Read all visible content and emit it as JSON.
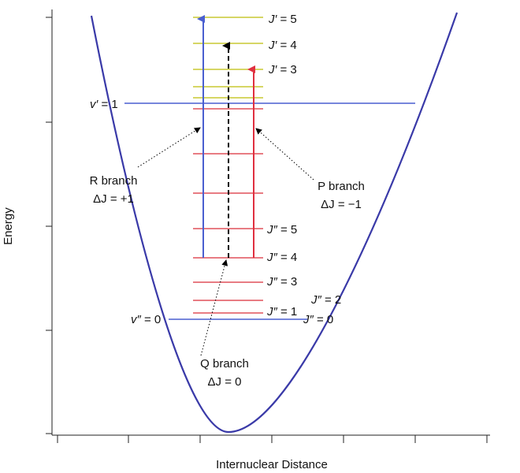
{
  "axes": {
    "x_label": "Internuclear Distance",
    "y_label": "Energy"
  },
  "colors": {
    "curve": "#3a3aa8",
    "upper_rotational_levels": "#c8c832",
    "lower_rotational_levels": "#e0505a",
    "r_branch_arrow": "#4a5fd0",
    "p_branch_arrow": "#e03040",
    "q_branch_arrow": "#000000",
    "vibrational_lines": "#4a5fd0"
  },
  "vibrational_levels": {
    "upper": {
      "symbol": "v′",
      "eq": " = ",
      "value": "1"
    },
    "lower": {
      "symbol": "v″",
      "eq": " = ",
      "value": "0"
    }
  },
  "upper_J_labels": [
    {
      "symbol": "J′",
      "eq": " = ",
      "value": "5"
    },
    {
      "symbol": "J′",
      "eq": " = ",
      "value": "4"
    },
    {
      "symbol": "J′",
      "eq": " = ",
      "value": "3"
    }
  ],
  "lower_J_labels": [
    {
      "symbol": "J″",
      "eq": " = ",
      "value": "5"
    },
    {
      "symbol": "J″",
      "eq": " = ",
      "value": "4"
    },
    {
      "symbol": "J″",
      "eq": " = ",
      "value": "3"
    },
    {
      "symbol": "J″",
      "eq": " = ",
      "value": "2"
    },
    {
      "symbol": "J″",
      "eq": " = ",
      "value": "1"
    },
    {
      "symbol": "J″",
      "eq": " = ",
      "value": "0"
    }
  ],
  "branches": {
    "r": {
      "name": "R branch",
      "delta_symbol": "ΔJ",
      "delta_eq": " = ",
      "delta_value": "+1"
    },
    "p": {
      "name": "P branch",
      "delta_symbol": "ΔJ",
      "delta_eq": " = ",
      "delta_value": "−1"
    },
    "q": {
      "name": "Q branch",
      "delta_symbol": "ΔJ",
      "delta_eq": " = ",
      "delta_value": "0"
    }
  }
}
